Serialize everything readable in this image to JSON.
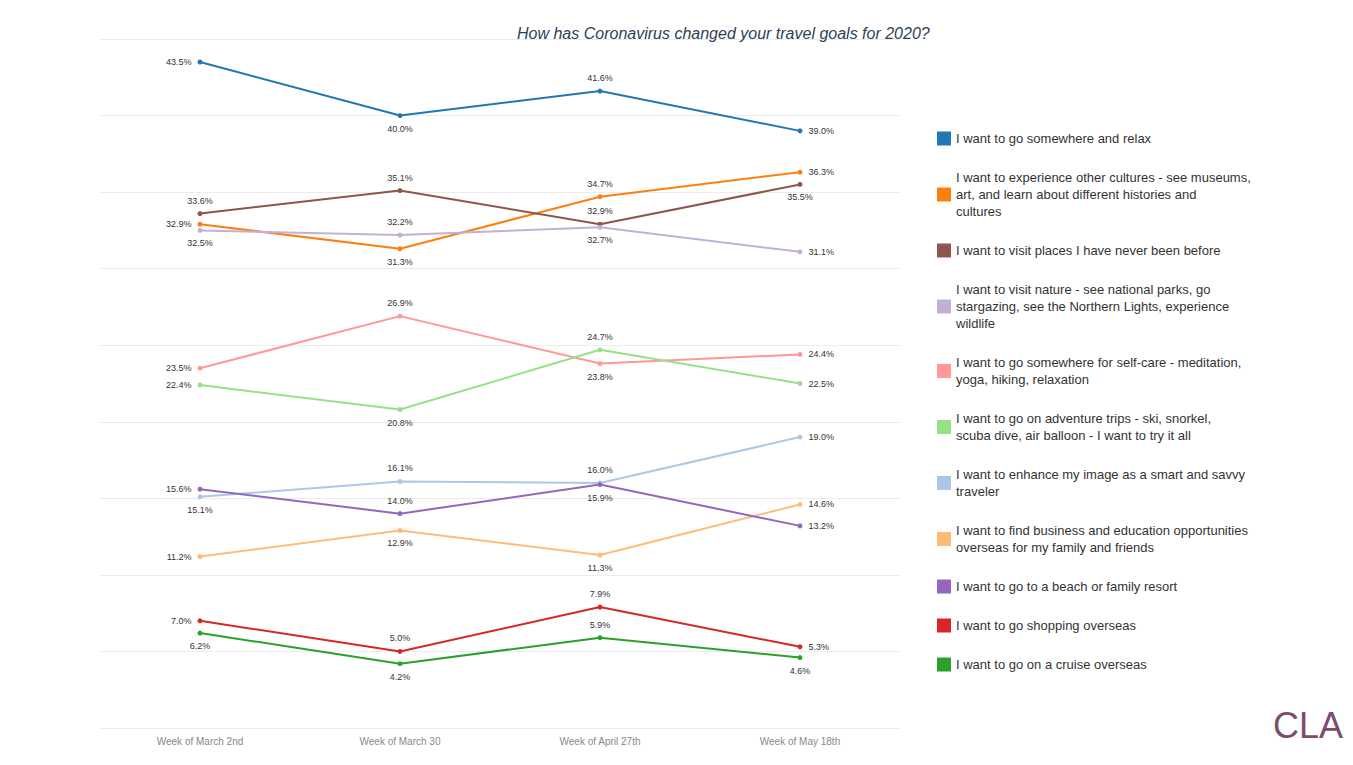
{
  "chart_data": {
    "type": "line",
    "title": "How has Coronavirus changed your travel goals for 2020?",
    "categories": [
      "Week of March 2nd",
      "Week of March 30",
      "Week of April 27th",
      "Week of May 18th"
    ],
    "ylim": [
      0,
      45
    ],
    "yticks": [
      0,
      5,
      10,
      15,
      20,
      25,
      30,
      35,
      40,
      45
    ],
    "grid": true,
    "tick_labels": "x",
    "legend": "right",
    "data_labels": true,
    "marker": "circle",
    "annotations": [
      "CLA"
    ],
    "series": [
      {
        "name": "I want to go somewhere and relax",
        "color": "#1f77b4",
        "values": [
          43.5,
          40.0,
          41.6,
          39.0
        ],
        "value_labels": [
          "43.5%",
          "40.0%",
          "41.6%",
          "39.0%"
        ]
      },
      {
        "name": "I want to experience other cultures - see museums, art, and learn about different histories and cultures",
        "color": "#ff7f0e",
        "values": [
          32.9,
          31.3,
          34.7,
          36.3
        ],
        "value_labels": [
          "32.9%",
          "31.3%",
          "34.7%",
          "36.3%"
        ]
      },
      {
        "name": "I want to visit places I have never been before",
        "color": "#8c564b",
        "values": [
          33.6,
          35.1,
          32.9,
          35.5
        ],
        "value_labels": [
          "33.6%",
          "35.1%",
          "32.9%",
          "35.5%"
        ]
      },
      {
        "name": "I want to visit nature - see national parks, go stargazing, see the Northern Lights, experience wildlife",
        "color": "#c5b0d5",
        "values": [
          32.5,
          32.2,
          32.7,
          31.1
        ],
        "value_labels": [
          "32.5%",
          "32.2%",
          "32.7%",
          "31.1%"
        ]
      },
      {
        "name": "I want to go somewhere for self-care - meditation, yoga, hiking, relaxation",
        "color": "#ff9896",
        "values": [
          23.5,
          26.9,
          23.8,
          24.4
        ],
        "value_labels": [
          "23.5%",
          "26.9%",
          "23.8%",
          "24.4%"
        ]
      },
      {
        "name": "I want to go on adventure trips - ski, snorkel, scuba dive, air balloon - I want to try it all",
        "color": "#98df8a",
        "values": [
          22.4,
          20.8,
          24.7,
          22.5
        ],
        "value_labels": [
          "22.4%",
          "20.8%",
          "24.7%",
          "22.5%"
        ]
      },
      {
        "name": "I want to enhance my image as a smart and savvy traveler",
        "color": "#aec7e8",
        "values": [
          15.1,
          16.1,
          16.0,
          19.0
        ],
        "value_labels": [
          "15.1%",
          "16.1%",
          "16.0%",
          "19.0%"
        ]
      },
      {
        "name": "I want to find business and education opportunities overseas for my family and friends",
        "color": "#ffbb78",
        "values": [
          11.2,
          12.9,
          11.3,
          14.6
        ],
        "value_labels": [
          "11.2%",
          "12.9%",
          "11.3%",
          "14.6%"
        ]
      },
      {
        "name": "I want to go to a beach or family resort",
        "color": "#9467bd",
        "values": [
          15.6,
          14.0,
          15.9,
          13.2
        ],
        "value_labels": [
          "15.6%",
          "14.0%",
          "15.9%",
          "13.2%"
        ]
      },
      {
        "name": "I want to go shopping overseas",
        "color": "#d62728",
        "values": [
          7.0,
          5.0,
          7.9,
          5.3
        ],
        "value_labels": [
          "7.0%",
          "5.0%",
          "7.9%",
          "5.3%"
        ]
      },
      {
        "name": "I want to go on a cruise overseas",
        "color": "#2ca02c",
        "values": [
          6.2,
          4.2,
          5.9,
          4.6
        ],
        "value_labels": [
          "6.2%",
          "4.2%",
          "5.9%",
          "4.6%"
        ]
      }
    ]
  }
}
